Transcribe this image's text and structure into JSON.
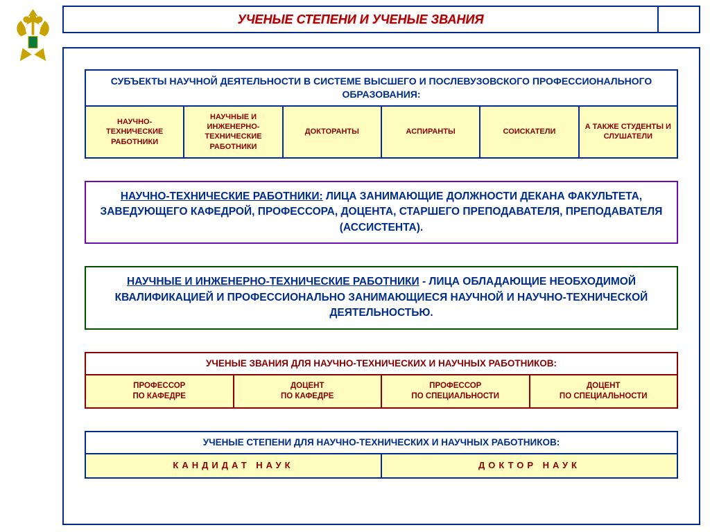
{
  "title": "УЧЕНЫЕ СТЕПЕНИ И УЧЕНЫЕ ЗВАНИЯ",
  "colors": {
    "navy": "#002d8b",
    "darkred": "#8b0000",
    "brightred": "#b00000",
    "purple": "#6a0dad",
    "darkgreen": "#005000",
    "cellbg": "#fffcc0",
    "white": "#ffffff"
  },
  "subjects": {
    "header": "СУБЪЕКТЫ НАУЧНОЙ ДЕЯТЕЛЬНОСТИ В СИСТЕМЕ ВЫСШЕГО И ПОСЛЕВУЗОВСКОГО ПРОФЕССИОНАЛЬНОГО ОБРАЗОВАНИЯ:",
    "cells": [
      "НАУЧНО-ТЕХНИЧЕСКИЕ РАБОТНИКИ",
      "НАУЧНЫЕ И ИНЖЕНЕРНО-ТЕХНИЧЕСКИЕ РАБОТНИКИ",
      "ДОКТОРАНТЫ",
      "АСПИРАНТЫ",
      "СОИСКАТЕЛИ",
      "А ТАКЖЕ СТУДЕНТЫ И СЛУШАТЕЛИ"
    ]
  },
  "def1": {
    "bold_underline": "НАУЧНО-ТЕХНИЧЕСКИЕ РАБОТНИКИ:",
    "mid1": " ЛИЦА ЗАНИМАЮЩИЕ ДОЛЖНОСТИ ",
    "bold2": "ДЕКАНА ФАКУЛЬТЕТА, ЗАВЕДУЮЩЕГО КАФЕДРОЙ, ПРОФЕССОРА, ДОЦЕНТА, СТАРШЕГО ПРЕПОДАВАТЕЛЯ, ПРЕПОДАВАТЕЛЯ (АССИСТЕНТА)."
  },
  "def2": {
    "bold_underline": "НАУЧНЫЕ И ИНЖЕНЕРНО-ТЕХНИЧЕСКИЕ РАБОТНИКИ",
    "rest": " - ЛИЦА ОБЛАДАЮЩИЕ НЕОБХОДИМОЙ КВАЛИФИКАЦИЕЙ И ПРОФЕССИОНАЛЬНО ЗАНИМАЮЩИЕСЯ НАУЧНОЙ И НАУЧНО-ТЕХНИЧЕСКОЙ ДЕЯТЕЛЬНОСТЬЮ."
  },
  "titles": {
    "header": "УЧЕНЫЕ ЗВАНИЯ ДЛЯ НАУЧНО-ТЕХНИЧЕСКИХ И НАУЧНЫХ РАБОТНИКОВ:",
    "cells": [
      "ПРОФЕССОР\nПО КАФЕДРЕ",
      "ДОЦЕНТ\nПО КАФЕДРЕ",
      "ПРОФЕССОР\nПО СПЕЦИАЛЬНОСТИ",
      "ДОЦЕНТ\nПО СПЕЦИАЛЬНОСТИ"
    ]
  },
  "degrees": {
    "header": "УЧЕНЫЕ СТЕПЕНИ ДЛЯ НАУЧНО-ТЕХНИЧЕСКИХ И НАУЧНЫХ РАБОТНИКОВ:",
    "cells": [
      "КАНДИДАТ НАУК",
      "ДОКТОР НАУК"
    ]
  }
}
